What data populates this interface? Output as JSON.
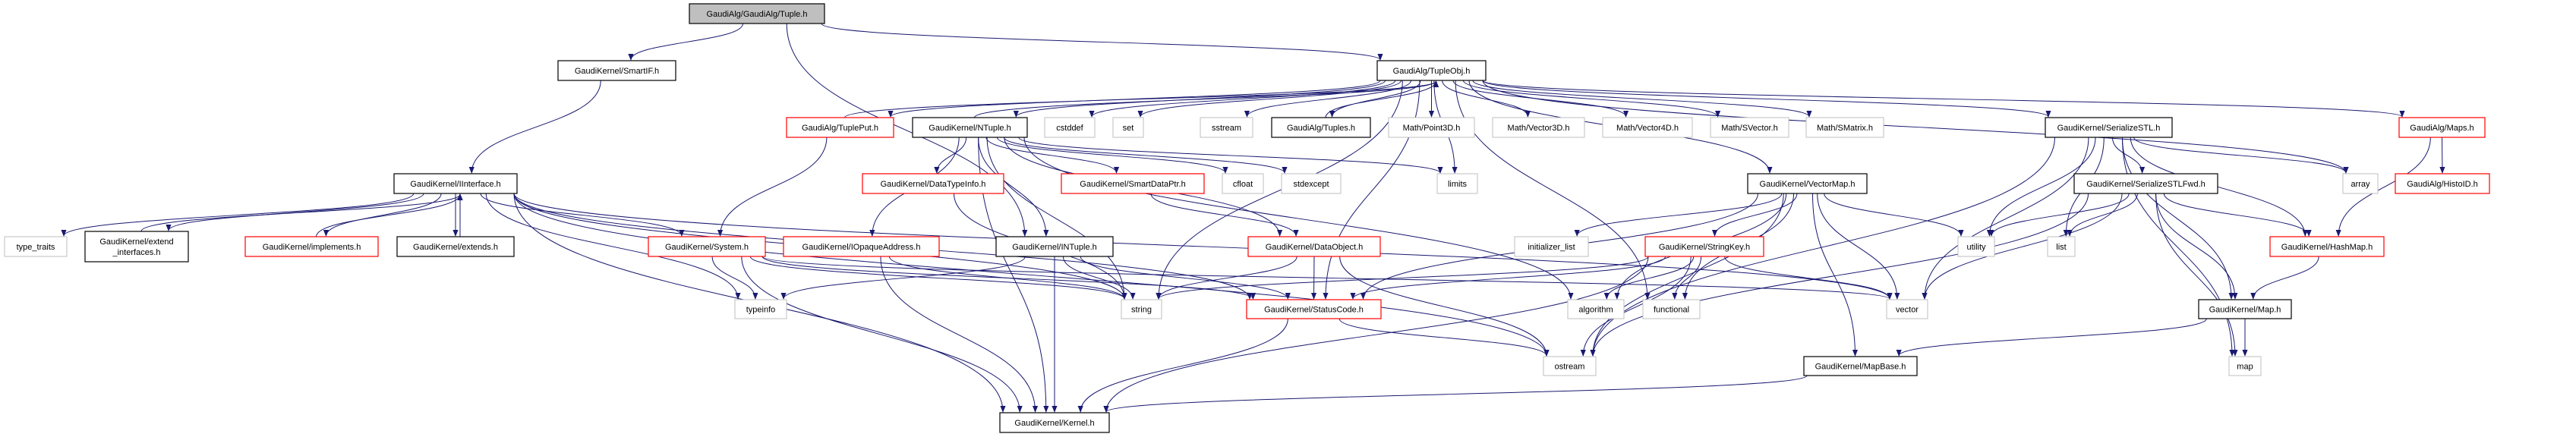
{
  "graph": {
    "colors": {
      "edge": "#191970",
      "documented_border": "#000000",
      "has_more_border": "#ff0000",
      "external_border": "#bfbfbf",
      "root_fill": "#bfbfbf"
    },
    "nodes": [
      {
        "id": "tuple",
        "label": "GaudiAlg/GaudiAlg/Tuple.h",
        "kind": "root"
      },
      {
        "id": "smartif",
        "label": "GaudiKernel/SmartIF.h",
        "kind": "documented"
      },
      {
        "id": "tupleobj",
        "label": "GaudiAlg/TupleObj.h",
        "kind": "documented"
      },
      {
        "id": "tupleput",
        "label": "GaudiAlg/TuplePut.h",
        "kind": "more"
      },
      {
        "id": "ntuple",
        "label": "GaudiKernel/NTuple.h",
        "kind": "documented"
      },
      {
        "id": "cstddef",
        "label": "cstddef",
        "kind": "external"
      },
      {
        "id": "set",
        "label": "set",
        "kind": "external"
      },
      {
        "id": "sstream",
        "label": "sstream",
        "kind": "external"
      },
      {
        "id": "tuples",
        "label": "GaudiAlg/Tuples.h",
        "kind": "documented"
      },
      {
        "id": "point3d",
        "label": "Math/Point3D.h",
        "kind": "external"
      },
      {
        "id": "vector3d",
        "label": "Math/Vector3D.h",
        "kind": "external"
      },
      {
        "id": "vector4d",
        "label": "Math/Vector4D.h",
        "kind": "external"
      },
      {
        "id": "svector",
        "label": "Math/SVector.h",
        "kind": "external"
      },
      {
        "id": "smatrix",
        "label": "Math/SMatrix.h",
        "kind": "external"
      },
      {
        "id": "serializestl",
        "label": "GaudiKernel/SerializeSTL.h",
        "kind": "documented"
      },
      {
        "id": "maps",
        "label": "GaudiAlg/Maps.h",
        "kind": "more"
      },
      {
        "id": "iinterface",
        "label": "GaudiKernel/IInterface.h",
        "kind": "documented"
      },
      {
        "id": "datatypeinfo",
        "label": "GaudiKernel/DataTypeInfo.h",
        "kind": "more"
      },
      {
        "id": "smartdataptr",
        "label": "GaudiKernel/SmartDataPtr.h",
        "kind": "more"
      },
      {
        "id": "cfloat",
        "label": "cfloat",
        "kind": "external"
      },
      {
        "id": "stdexcept",
        "label": "stdexcept",
        "kind": "external"
      },
      {
        "id": "limits",
        "label": "limits",
        "kind": "external"
      },
      {
        "id": "vectormap",
        "label": "GaudiKernel/VectorMap.h",
        "kind": "documented"
      },
      {
        "id": "serializestlfwd",
        "label": "GaudiKernel/SerializeSTLFwd.h",
        "kind": "documented"
      },
      {
        "id": "array",
        "label": "array",
        "kind": "external"
      },
      {
        "id": "histoid",
        "label": "GaudiAlg/HistoID.h",
        "kind": "more"
      },
      {
        "id": "type_traits",
        "label": "type_traits",
        "kind": "external"
      },
      {
        "id": "extend_interfaces",
        "label": "GaudiKernel/extend\n_interfaces.h",
        "kind": "documented"
      },
      {
        "id": "implements",
        "label": "GaudiKernel/implements.h",
        "kind": "more"
      },
      {
        "id": "extends",
        "label": "GaudiKernel/extends.h",
        "kind": "documented"
      },
      {
        "id": "system",
        "label": "GaudiKernel/System.h",
        "kind": "more"
      },
      {
        "id": "iopaque",
        "label": "GaudiKernel/IOpaqueAddress.h",
        "kind": "more"
      },
      {
        "id": "intuple",
        "label": "GaudiKernel/INTuple.h",
        "kind": "documented"
      },
      {
        "id": "dataobject",
        "label": "GaudiKernel/DataObject.h",
        "kind": "more"
      },
      {
        "id": "initializer_list",
        "label": "initializer_list",
        "kind": "external"
      },
      {
        "id": "stringkey",
        "label": "GaudiKernel/StringKey.h",
        "kind": "more"
      },
      {
        "id": "utility",
        "label": "utility",
        "kind": "external"
      },
      {
        "id": "list",
        "label": "list",
        "kind": "external"
      },
      {
        "id": "hashmap",
        "label": "GaudiKernel/HashMap.h",
        "kind": "more"
      },
      {
        "id": "typeinfo",
        "label": "typeinfo",
        "kind": "external"
      },
      {
        "id": "string",
        "label": "string",
        "kind": "external"
      },
      {
        "id": "statuscode",
        "label": "GaudiKernel/StatusCode.h",
        "kind": "more"
      },
      {
        "id": "algorithm",
        "label": "algorithm",
        "kind": "external"
      },
      {
        "id": "functional",
        "label": "functional",
        "kind": "external"
      },
      {
        "id": "vector",
        "label": "vector",
        "kind": "external"
      },
      {
        "id": "mapH",
        "label": "GaudiKernel/Map.h",
        "kind": "documented"
      },
      {
        "id": "ostream",
        "label": "ostream",
        "kind": "external"
      },
      {
        "id": "mapbase",
        "label": "GaudiKernel/MapBase.h",
        "kind": "documented"
      },
      {
        "id": "map",
        "label": "map",
        "kind": "external"
      },
      {
        "id": "kernel",
        "label": "GaudiKernel/Kernel.h",
        "kind": "documented"
      }
    ],
    "edges": [
      [
        "tuple",
        "smartif"
      ],
      [
        "tuple",
        "tupleobj"
      ],
      [
        "tuple",
        "intuple"
      ],
      [
        "smartif",
        "iinterface"
      ],
      [
        "iinterface",
        "type_traits"
      ],
      [
        "iinterface",
        "extend_interfaces"
      ],
      [
        "iinterface",
        "implements"
      ],
      [
        "iinterface",
        "extends"
      ],
      [
        "iinterface",
        "system"
      ],
      [
        "iinterface",
        "typeinfo"
      ],
      [
        "iinterface",
        "string"
      ],
      [
        "iinterface",
        "ostream"
      ],
      [
        "iinterface",
        "kernel"
      ],
      [
        "iinterface",
        "statuscode"
      ],
      [
        "iinterface",
        "vector"
      ],
      [
        "extend_interfaces",
        "iinterface"
      ],
      [
        "implements",
        "iinterface"
      ],
      [
        "extends",
        "iinterface"
      ],
      [
        "system",
        "typeinfo"
      ],
      [
        "system",
        "string"
      ],
      [
        "system",
        "kernel"
      ],
      [
        "system",
        "vector"
      ],
      [
        "system",
        "statuscode"
      ],
      [
        "tupleput",
        "tupleobj"
      ],
      [
        "tupleput",
        "system"
      ],
      [
        "tupleobj",
        "tupleput"
      ],
      [
        "tupleobj",
        "ntuple"
      ],
      [
        "tupleobj",
        "cstddef"
      ],
      [
        "tupleobj",
        "set"
      ],
      [
        "tupleobj",
        "sstream"
      ],
      [
        "tupleobj",
        "tuples"
      ],
      [
        "tupleobj",
        "point3d"
      ],
      [
        "tupleobj",
        "vector3d"
      ],
      [
        "tupleobj",
        "vector4d"
      ],
      [
        "tupleobj",
        "svector"
      ],
      [
        "tupleobj",
        "smatrix"
      ],
      [
        "tupleobj",
        "serializestl"
      ],
      [
        "tupleobj",
        "maps"
      ],
      [
        "tupleobj",
        "vectormap"
      ],
      [
        "tupleobj",
        "array"
      ],
      [
        "tupleobj",
        "limits"
      ],
      [
        "tupleobj",
        "string"
      ],
      [
        "tupleobj",
        "statuscode"
      ],
      [
        "tupleobj",
        "functional"
      ],
      [
        "tuples",
        "tupleobj"
      ],
      [
        "ntuple",
        "tupleobj"
      ],
      [
        "ntuple",
        "datatypeinfo"
      ],
      [
        "ntuple",
        "smartdataptr"
      ],
      [
        "ntuple",
        "cfloat"
      ],
      [
        "ntuple",
        "stdexcept"
      ],
      [
        "ntuple",
        "limits"
      ],
      [
        "ntuple",
        "iopaque"
      ],
      [
        "ntuple",
        "intuple"
      ],
      [
        "ntuple",
        "dataobject"
      ],
      [
        "ntuple",
        "string"
      ],
      [
        "ntuple",
        "algorithm"
      ],
      [
        "ntuple",
        "kernel"
      ],
      [
        "datatypeinfo",
        "string"
      ],
      [
        "smartdataptr",
        "dataobject"
      ],
      [
        "iopaque",
        "string"
      ],
      [
        "iopaque",
        "kernel"
      ],
      [
        "intuple",
        "string"
      ],
      [
        "intuple",
        "statuscode"
      ],
      [
        "intuple",
        "kernel"
      ],
      [
        "intuple",
        "typeinfo"
      ],
      [
        "dataobject",
        "string"
      ],
      [
        "dataobject",
        "statuscode"
      ],
      [
        "dataobject",
        "ostream"
      ],
      [
        "statuscode",
        "ostream"
      ],
      [
        "statuscode",
        "kernel"
      ],
      [
        "vectormap",
        "stringkey"
      ],
      [
        "vectormap",
        "initializer_list"
      ],
      [
        "vectormap",
        "algorithm"
      ],
      [
        "vectormap",
        "functional"
      ],
      [
        "vectormap",
        "utility"
      ],
      [
        "vectormap",
        "vector"
      ],
      [
        "vectormap",
        "ostream"
      ],
      [
        "vectormap",
        "mapbase"
      ],
      [
        "vectormap",
        "statuscode"
      ],
      [
        "stringkey",
        "string"
      ],
      [
        "stringkey",
        "statuscode"
      ],
      [
        "stringkey",
        "algorithm"
      ],
      [
        "stringkey",
        "functional"
      ],
      [
        "stringkey",
        "vector"
      ],
      [
        "stringkey",
        "ostream"
      ],
      [
        "stringkey",
        "kernel"
      ],
      [
        "serializestl",
        "serializestlfwd"
      ],
      [
        "serializestl",
        "utility"
      ],
      [
        "serializestl",
        "list"
      ],
      [
        "serializestl",
        "vector"
      ],
      [
        "serializestl",
        "array"
      ],
      [
        "serializestl",
        "hashmap"
      ],
      [
        "serializestl",
        "mapH"
      ],
      [
        "serializestl",
        "map"
      ],
      [
        "serializestl",
        "ostream"
      ],
      [
        "serializestlfwd",
        "utility"
      ],
      [
        "serializestlfwd",
        "list"
      ],
      [
        "serializestlfwd",
        "vector"
      ],
      [
        "serializestlfwd",
        "hashmap"
      ],
      [
        "serializestlfwd",
        "mapH"
      ],
      [
        "serializestlfwd",
        "map"
      ],
      [
        "serializestlfwd",
        "ostream"
      ],
      [
        "maps",
        "histoid"
      ],
      [
        "maps",
        "hashmap"
      ],
      [
        "hashmap",
        "mapH"
      ],
      [
        "mapH",
        "map"
      ],
      [
        "mapH",
        "mapbase"
      ],
      [
        "mapbase",
        "kernel"
      ]
    ]
  }
}
